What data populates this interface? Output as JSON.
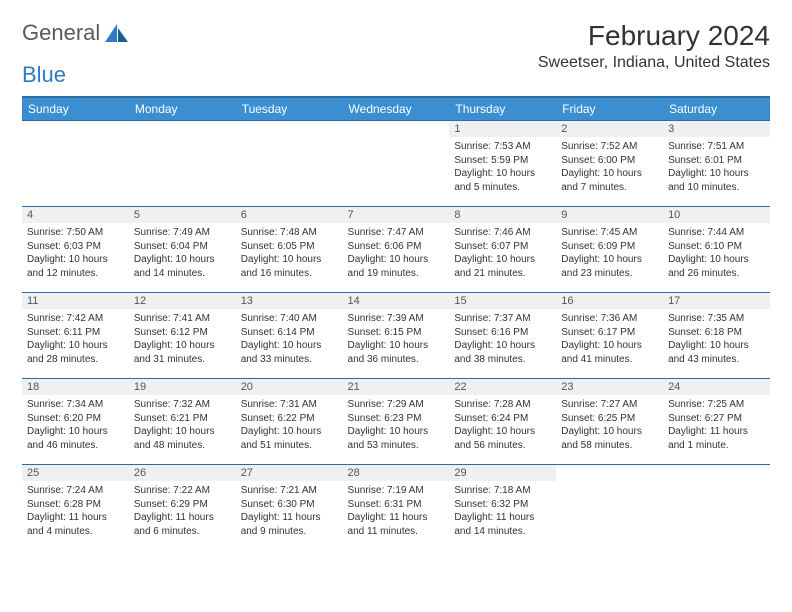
{
  "brand": {
    "part1": "General",
    "part2": "Blue"
  },
  "title": "February 2024",
  "location": "Sweetser, Indiana, United States",
  "colors": {
    "header_bg": "#3b8fd1",
    "header_border": "#2a6ca3",
    "daynum_bg": "#eef0f1",
    "text": "#333333"
  },
  "daynames": [
    "Sunday",
    "Monday",
    "Tuesday",
    "Wednesday",
    "Thursday",
    "Friday",
    "Saturday"
  ],
  "weeks": [
    [
      null,
      null,
      null,
      null,
      {
        "n": "1",
        "sr": "7:53 AM",
        "ss": "5:59 PM",
        "dl": "10 hours and 5 minutes."
      },
      {
        "n": "2",
        "sr": "7:52 AM",
        "ss": "6:00 PM",
        "dl": "10 hours and 7 minutes."
      },
      {
        "n": "3",
        "sr": "7:51 AM",
        "ss": "6:01 PM",
        "dl": "10 hours and 10 minutes."
      }
    ],
    [
      {
        "n": "4",
        "sr": "7:50 AM",
        "ss": "6:03 PM",
        "dl": "10 hours and 12 minutes."
      },
      {
        "n": "5",
        "sr": "7:49 AM",
        "ss": "6:04 PM",
        "dl": "10 hours and 14 minutes."
      },
      {
        "n": "6",
        "sr": "7:48 AM",
        "ss": "6:05 PM",
        "dl": "10 hours and 16 minutes."
      },
      {
        "n": "7",
        "sr": "7:47 AM",
        "ss": "6:06 PM",
        "dl": "10 hours and 19 minutes."
      },
      {
        "n": "8",
        "sr": "7:46 AM",
        "ss": "6:07 PM",
        "dl": "10 hours and 21 minutes."
      },
      {
        "n": "9",
        "sr": "7:45 AM",
        "ss": "6:09 PM",
        "dl": "10 hours and 23 minutes."
      },
      {
        "n": "10",
        "sr": "7:44 AM",
        "ss": "6:10 PM",
        "dl": "10 hours and 26 minutes."
      }
    ],
    [
      {
        "n": "11",
        "sr": "7:42 AM",
        "ss": "6:11 PM",
        "dl": "10 hours and 28 minutes."
      },
      {
        "n": "12",
        "sr": "7:41 AM",
        "ss": "6:12 PM",
        "dl": "10 hours and 31 minutes."
      },
      {
        "n": "13",
        "sr": "7:40 AM",
        "ss": "6:14 PM",
        "dl": "10 hours and 33 minutes."
      },
      {
        "n": "14",
        "sr": "7:39 AM",
        "ss": "6:15 PM",
        "dl": "10 hours and 36 minutes."
      },
      {
        "n": "15",
        "sr": "7:37 AM",
        "ss": "6:16 PM",
        "dl": "10 hours and 38 minutes."
      },
      {
        "n": "16",
        "sr": "7:36 AM",
        "ss": "6:17 PM",
        "dl": "10 hours and 41 minutes."
      },
      {
        "n": "17",
        "sr": "7:35 AM",
        "ss": "6:18 PM",
        "dl": "10 hours and 43 minutes."
      }
    ],
    [
      {
        "n": "18",
        "sr": "7:34 AM",
        "ss": "6:20 PM",
        "dl": "10 hours and 46 minutes."
      },
      {
        "n": "19",
        "sr": "7:32 AM",
        "ss": "6:21 PM",
        "dl": "10 hours and 48 minutes."
      },
      {
        "n": "20",
        "sr": "7:31 AM",
        "ss": "6:22 PM",
        "dl": "10 hours and 51 minutes."
      },
      {
        "n": "21",
        "sr": "7:29 AM",
        "ss": "6:23 PM",
        "dl": "10 hours and 53 minutes."
      },
      {
        "n": "22",
        "sr": "7:28 AM",
        "ss": "6:24 PM",
        "dl": "10 hours and 56 minutes."
      },
      {
        "n": "23",
        "sr": "7:27 AM",
        "ss": "6:25 PM",
        "dl": "10 hours and 58 minutes."
      },
      {
        "n": "24",
        "sr": "7:25 AM",
        "ss": "6:27 PM",
        "dl": "11 hours and 1 minute."
      }
    ],
    [
      {
        "n": "25",
        "sr": "7:24 AM",
        "ss": "6:28 PM",
        "dl": "11 hours and 4 minutes."
      },
      {
        "n": "26",
        "sr": "7:22 AM",
        "ss": "6:29 PM",
        "dl": "11 hours and 6 minutes."
      },
      {
        "n": "27",
        "sr": "7:21 AM",
        "ss": "6:30 PM",
        "dl": "11 hours and 9 minutes."
      },
      {
        "n": "28",
        "sr": "7:19 AM",
        "ss": "6:31 PM",
        "dl": "11 hours and 11 minutes."
      },
      {
        "n": "29",
        "sr": "7:18 AM",
        "ss": "6:32 PM",
        "dl": "11 hours and 14 minutes."
      },
      null,
      null
    ]
  ],
  "labels": {
    "sunrise": "Sunrise: ",
    "sunset": "Sunset: ",
    "daylight": "Daylight: "
  }
}
